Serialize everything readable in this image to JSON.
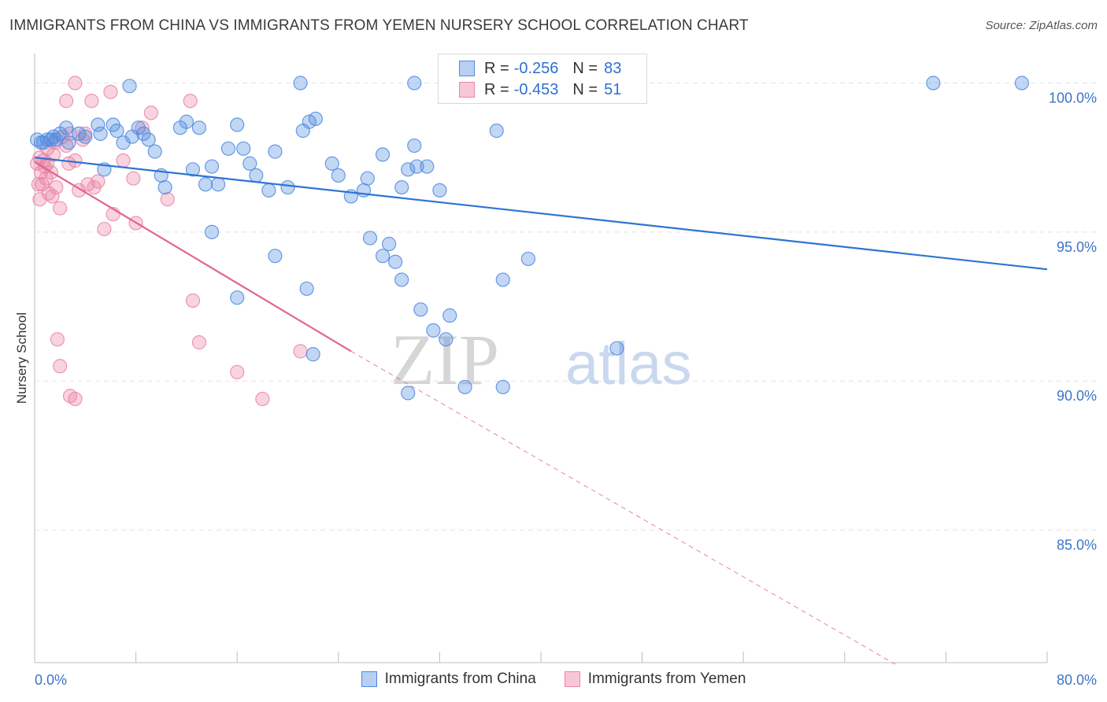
{
  "title": "IMMIGRANTS FROM CHINA VS IMMIGRANTS FROM YEMEN NURSERY SCHOOL CORRELATION CHART",
  "source": "Source: ZipAtlas.com",
  "watermark": {
    "zip": "ZIP",
    "atlas": "atlas"
  },
  "legend": {
    "rows": [
      {
        "r_label": "R =",
        "r_value": "-0.256",
        "n_label": "N =",
        "n_value": "83"
      },
      {
        "r_label": "R =",
        "r_value": "-0.453",
        "n_label": "N =",
        "n_value": "51"
      }
    ]
  },
  "chart_data": {
    "type": "scatter",
    "xlabel": "",
    "ylabel": "Nursery School",
    "xlim": [
      0,
      80
    ],
    "ylim": [
      80.5,
      100.7
    ],
    "x_tick_labels": [
      "0.0%",
      "80.0%"
    ],
    "y_ticks": [
      85,
      90,
      95,
      100
    ],
    "y_tick_labels": [
      "85.0%",
      "90.0%",
      "95.0%",
      "100.0%"
    ],
    "grid": true,
    "legend_placement": "bottom-center",
    "colors": {
      "china": "#4f8be0",
      "yemen": "#ec85a5",
      "china_line": "#2e74d4",
      "yemen_line": "#e0658f",
      "tick_label": "#3d74c8"
    },
    "series": [
      {
        "name": "Immigrants from China",
        "trend": {
          "x0": 0,
          "y0": 97.5,
          "x1": 80,
          "y1": 93.75
        },
        "points": [
          [
            0.2,
            98.1
          ],
          [
            0.5,
            98.0
          ],
          [
            1.0,
            98.1
          ],
          [
            1.3,
            98.1
          ],
          [
            1.5,
            98.2
          ],
          [
            1.7,
            98.1
          ],
          [
            2.0,
            98.3
          ],
          [
            2.5,
            98.5
          ],
          [
            2.7,
            98.0
          ],
          [
            3.5,
            98.3
          ],
          [
            4.0,
            98.2
          ],
          [
            5.0,
            98.6
          ],
          [
            5.2,
            98.3
          ],
          [
            5.5,
            97.1
          ],
          [
            6.2,
            98.6
          ],
          [
            6.5,
            98.4
          ],
          [
            7.0,
            98.0
          ],
          [
            7.7,
            98.2
          ],
          [
            8.2,
            98.5
          ],
          [
            8.6,
            98.3
          ],
          [
            9.0,
            98.1
          ],
          [
            9.5,
            97.7
          ],
          [
            10.0,
            96.9
          ],
          [
            10.3,
            96.5
          ],
          [
            11.5,
            98.5
          ],
          [
            12.0,
            98.7
          ],
          [
            12.5,
            97.1
          ],
          [
            13.0,
            98.5
          ],
          [
            13.5,
            96.6
          ],
          [
            14.0,
            97.2
          ],
          [
            14.5,
            96.6
          ],
          [
            15.3,
            97.8
          ],
          [
            16.0,
            98.6
          ],
          [
            16.5,
            97.8
          ],
          [
            17.0,
            97.3
          ],
          [
            17.5,
            96.9
          ],
          [
            18.5,
            96.4
          ],
          [
            19.0,
            97.7
          ],
          [
            20.0,
            96.5
          ],
          [
            21.2,
            98.4
          ],
          [
            21.7,
            98.7
          ],
          [
            22.2,
            98.8
          ],
          [
            23.5,
            97.3
          ],
          [
            24.0,
            96.9
          ],
          [
            25.0,
            96.2
          ],
          [
            26.0,
            96.4
          ],
          [
            26.3,
            96.8
          ],
          [
            27.5,
            97.6
          ],
          [
            29.0,
            96.5
          ],
          [
            29.5,
            97.1
          ],
          [
            30.0,
            97.9
          ],
          [
            30.2,
            97.2
          ],
          [
            31.0,
            97.2
          ],
          [
            32.0,
            96.4
          ],
          [
            7.5,
            99.9
          ],
          [
            21.0,
            100.0
          ],
          [
            30.0,
            100.0
          ],
          [
            35.5,
            99.9
          ],
          [
            37.0,
            100.0
          ],
          [
            71.0,
            100.0
          ],
          [
            78.0,
            100.0
          ],
          [
            36.5,
            98.4
          ],
          [
            14.0,
            95.0
          ],
          [
            19.0,
            94.2
          ],
          [
            16.0,
            92.8
          ],
          [
            21.5,
            93.1
          ],
          [
            22.0,
            90.9
          ],
          [
            26.5,
            94.8
          ],
          [
            27.5,
            94.2
          ],
          [
            28.5,
            94.0
          ],
          [
            28.0,
            94.6
          ],
          [
            29.0,
            93.4
          ],
          [
            30.5,
            92.4
          ],
          [
            31.5,
            91.7
          ],
          [
            32.5,
            91.4
          ],
          [
            32.8,
            92.2
          ],
          [
            37.0,
            93.4
          ],
          [
            39.0,
            94.1
          ],
          [
            46.0,
            91.1
          ],
          [
            29.5,
            89.6
          ],
          [
            34.0,
            89.8
          ],
          [
            37.0,
            89.8
          ],
          [
            0.7,
            98.0
          ]
        ]
      },
      {
        "name": "Immigrants from Yemen",
        "trend": {
          "x0": 0,
          "y0": 97.35,
          "x1": 25,
          "y1": 91.0,
          "dash_x1": 68,
          "dash_y1": 80.5
        },
        "points": [
          [
            0.2,
            97.3
          ],
          [
            0.4,
            97.5
          ],
          [
            0.5,
            97.0
          ],
          [
            0.6,
            96.6
          ],
          [
            0.8,
            97.2
          ],
          [
            0.9,
            96.8
          ],
          [
            1.0,
            97.3
          ],
          [
            1.1,
            96.3
          ],
          [
            1.3,
            97.0
          ],
          [
            1.5,
            97.6
          ],
          [
            1.7,
            96.5
          ],
          [
            2.0,
            95.8
          ],
          [
            2.2,
            98.2
          ],
          [
            2.5,
            97.9
          ],
          [
            2.8,
            98.3
          ],
          [
            3.2,
            97.4
          ],
          [
            3.5,
            96.4
          ],
          [
            4.0,
            98.3
          ],
          [
            4.2,
            96.6
          ],
          [
            4.7,
            96.5
          ],
          [
            5.5,
            95.1
          ],
          [
            6.2,
            95.6
          ],
          [
            7.0,
            97.4
          ],
          [
            7.8,
            96.8
          ],
          [
            8.0,
            95.3
          ],
          [
            8.5,
            98.5
          ],
          [
            9.2,
            99.0
          ],
          [
            10.5,
            96.1
          ],
          [
            12.3,
            99.4
          ],
          [
            12.5,
            92.7
          ],
          [
            13.0,
            91.3
          ],
          [
            16.0,
            90.3
          ],
          [
            18.0,
            89.4
          ],
          [
            21.0,
            91.0
          ],
          [
            3.2,
            89.4
          ],
          [
            2.8,
            89.5
          ],
          [
            2.0,
            90.5
          ],
          [
            1.8,
            91.4
          ],
          [
            3.2,
            100.0
          ],
          [
            2.5,
            99.4
          ],
          [
            4.5,
            99.4
          ],
          [
            6.0,
            99.7
          ],
          [
            1.0,
            97.8
          ],
          [
            0.4,
            96.1
          ],
          [
            1.6,
            98.0
          ],
          [
            0.3,
            96.6
          ],
          [
            1.4,
            96.2
          ],
          [
            2.7,
            97.3
          ],
          [
            0.7,
            97.4
          ],
          [
            3.8,
            98.1
          ],
          [
            5.0,
            96.7
          ]
        ]
      }
    ]
  }
}
